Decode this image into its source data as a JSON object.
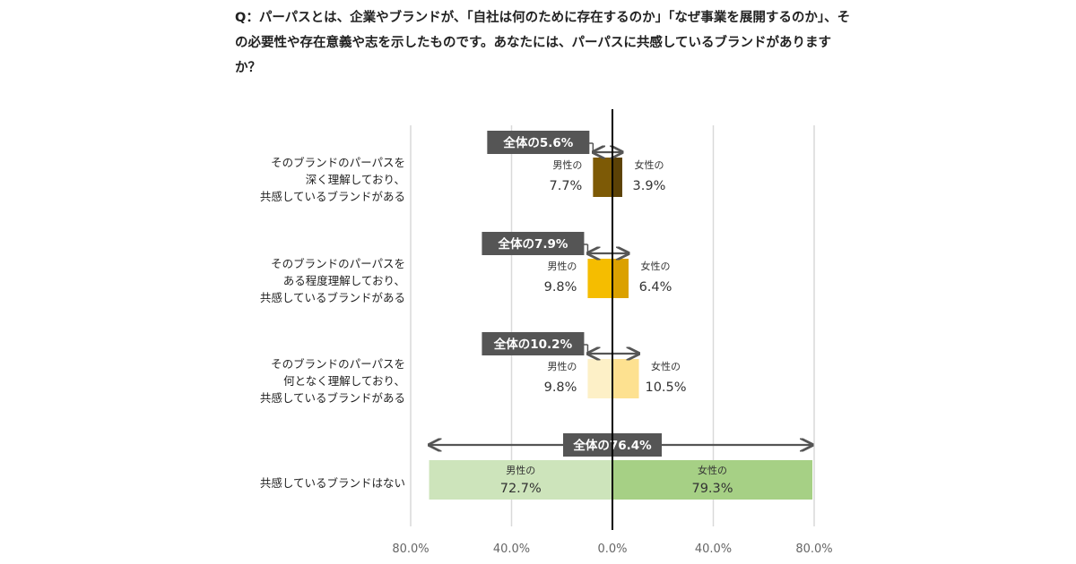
{
  "question": "Q：パーパスとは、企業やブランドが、「自社は何のために存在するのか」「なぜ事業を展開するのか」、その必要性や存在意義や志を示したものです。あなたには、パーパスに共感しているブランドがありますか？",
  "chart_data": {
    "type": "bar",
    "orientation": "horizontal-diverging",
    "xlim": [
      -80,
      80
    ],
    "tick_labels": [
      "80.0%",
      "40.0%",
      "0.0%",
      "40.0%",
      "80.0%"
    ],
    "tick_values": [
      -80,
      -40,
      0,
      40,
      80
    ],
    "grid": true,
    "male_prefix": "男性の",
    "female_prefix": "女性の",
    "categories": [
      {
        "label_lines": [
          "そのブランドのパーパスを",
          "深く理解しており、",
          "共感しているブランドがある"
        ],
        "total_label": "全体の5.6%",
        "total": 5.6,
        "male": 7.7,
        "female": 3.9,
        "male_text": "7.7%",
        "female_text": "3.9%",
        "male_color": "#7d5a06",
        "female_color": "#5b4106"
      },
      {
        "label_lines": [
          "そのブランドのパーパスを",
          "ある程度理解しており、",
          "共感しているブランドがある"
        ],
        "total_label": "全体の7.9%",
        "total": 7.9,
        "male": 9.8,
        "female": 6.4,
        "male_text": "9.8%",
        "female_text": "6.4%",
        "male_color": "#f5bd00",
        "female_color": "#dba100"
      },
      {
        "label_lines": [
          "そのブランドのパーパスを",
          "何となく理解しており、",
          "共感しているブランドがある"
        ],
        "total_label": "全体の10.2%",
        "total": 10.2,
        "male": 9.8,
        "female": 10.5,
        "male_text": "9.8%",
        "female_text": "10.5%",
        "male_color": "#fdf0c7",
        "female_color": "#fde190"
      },
      {
        "label_lines": [
          "共感しているブランドはない"
        ],
        "total_label": "全体の76.4%",
        "total": 76.4,
        "male": 72.7,
        "female": 79.3,
        "male_text": "72.7%",
        "female_text": "79.3%",
        "male_color": "#cde4bb",
        "female_color": "#a6d085"
      }
    ]
  }
}
